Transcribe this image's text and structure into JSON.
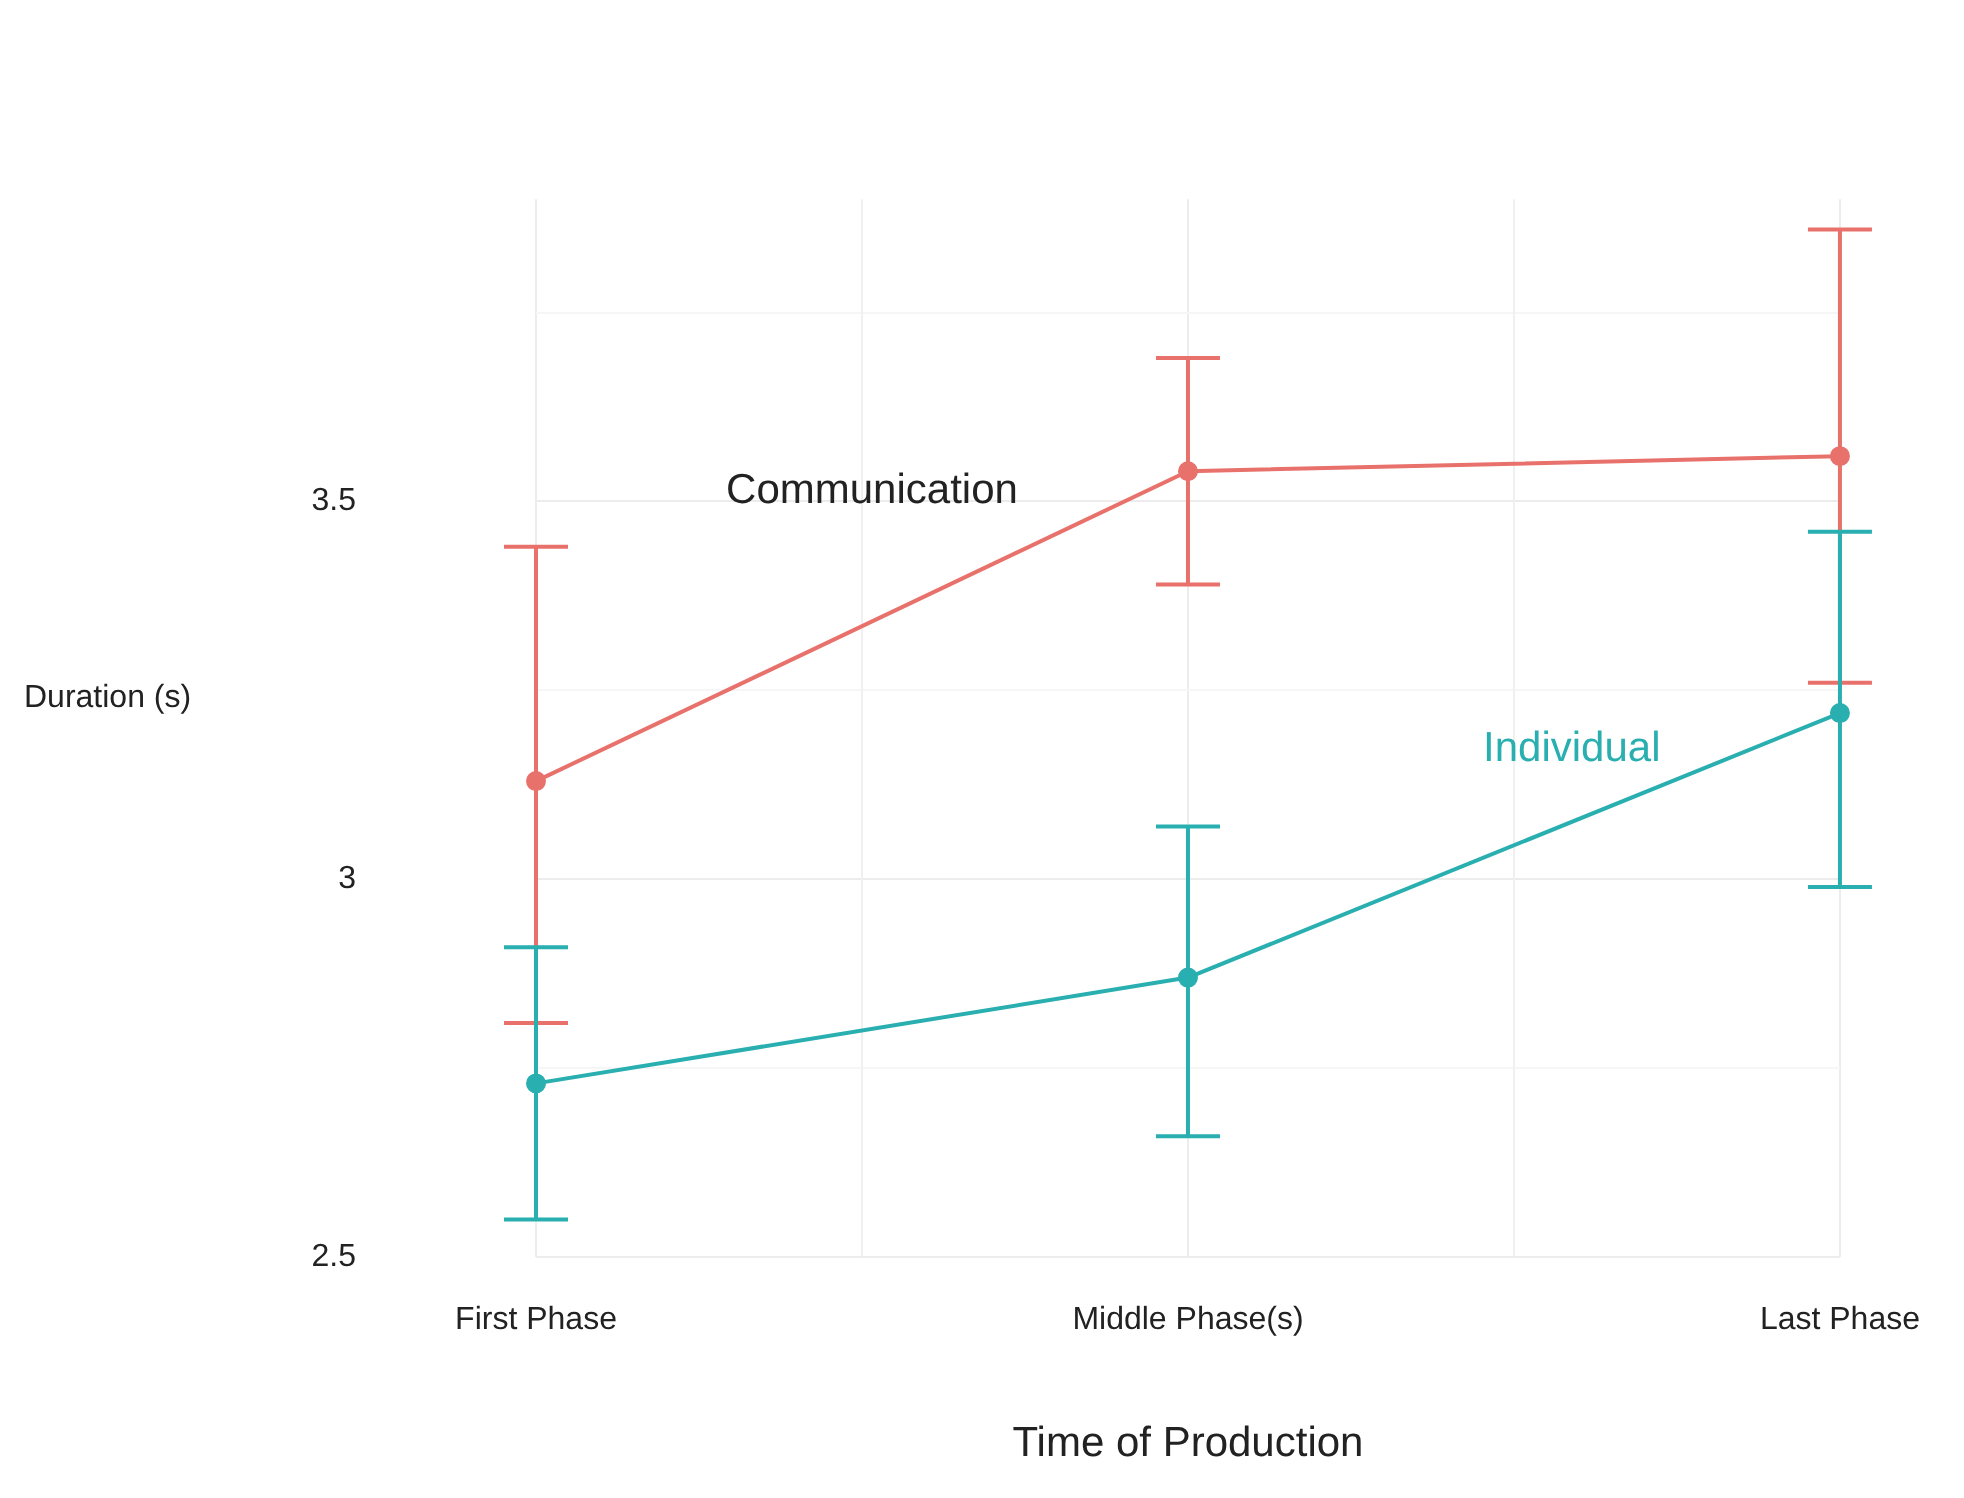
{
  "chart_data": {
    "type": "line",
    "xlabel": "Time of Production",
    "ylabel": "Duration (s)",
    "categories": [
      "First Phase",
      "Middle Phase(s)",
      "Last Phase"
    ],
    "series": [
      {
        "name": "Communication",
        "color": "#e8716b",
        "values": [
          3.13,
          3.54,
          3.56
        ],
        "errors": [
          [
            2.81,
            3.44
          ],
          [
            3.39,
            3.69
          ],
          [
            3.26,
            3.86
          ]
        ]
      },
      {
        "name": "Individual",
        "color": "#2aafb1",
        "values": [
          2.73,
          2.87,
          3.22
        ],
        "errors": [
          [
            2.55,
            2.91
          ],
          [
            2.66,
            3.07
          ],
          [
            2.99,
            3.46
          ]
        ]
      }
    ],
    "ylim": [
      2.5,
      3.9
    ],
    "yticks": [
      2.5,
      {
        "value": 2.75,
        "label": null
      },
      3,
      {
        "value": 3.25,
        "label": null
      },
      3.5,
      {
        "value": 3.75,
        "label": null
      }
    ],
    "grid": true,
    "marker": "circle",
    "line_style": "solid",
    "legend": false
  }
}
